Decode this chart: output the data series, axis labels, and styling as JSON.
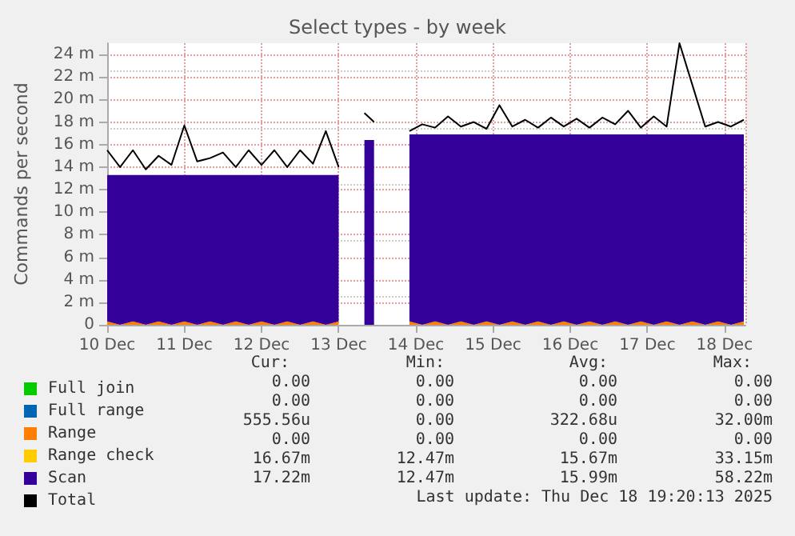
{
  "chart_data": {
    "type": "area",
    "title": "Select types - by week",
    "ylabel": "Commands per second",
    "stacked": true,
    "grid": true,
    "legend": "bottom left",
    "marker": "none",
    "line_style": "solid",
    "x": [
      "2025-12-10T00:00",
      "2025-12-10T04:00",
      "2025-12-10T08:00",
      "2025-12-10T12:00",
      "2025-12-10T16:00",
      "2025-12-10T20:00",
      "2025-12-11T00:00",
      "2025-12-11T04:00",
      "2025-12-11T08:00",
      "2025-12-11T12:00",
      "2025-12-11T16:00",
      "2025-12-11T20:00",
      "2025-12-12T00:00",
      "2025-12-12T04:00",
      "2025-12-12T08:00",
      "2025-12-12T12:00",
      "2025-12-12T16:00",
      "2025-12-12T20:00",
      "2025-12-13T00:00",
      "2025-12-13T01:00",
      "2025-12-13T08:00",
      "2025-12-13T11:00",
      "2025-12-13T12:00",
      "2025-12-13T22:00",
      "2025-12-14T02:00",
      "2025-12-14T06:00",
      "2025-12-14T10:00",
      "2025-12-14T14:00",
      "2025-12-14T18:00",
      "2025-12-14T22:00",
      "2025-12-15T02:00",
      "2025-12-15T06:00",
      "2025-12-15T10:00",
      "2025-12-15T14:00",
      "2025-12-15T18:00",
      "2025-12-15T22:00",
      "2025-12-16T02:00",
      "2025-12-16T06:00",
      "2025-12-16T10:00",
      "2025-12-16T14:00",
      "2025-12-16T18:00",
      "2025-12-16T22:00",
      "2025-12-17T02:00",
      "2025-12-17T06:00",
      "2025-12-17T10:00",
      "2025-12-17T14:00",
      "2025-12-17T18:00",
      "2025-12-17T22:00",
      "2025-12-18T02:00",
      "2025-12-18T06:00"
    ],
    "xlim": [
      "2025-12-10T00:00",
      "2025-12-18T06:30"
    ],
    "xticks": [
      {
        "value": "2025-12-10",
        "label": "10 Dec"
      },
      {
        "value": "2025-12-11",
        "label": "11 Dec"
      },
      {
        "value": "2025-12-12",
        "label": "12 Dec"
      },
      {
        "value": "2025-12-13",
        "label": "13 Dec"
      },
      {
        "value": "2025-12-14",
        "label": "14 Dec"
      },
      {
        "value": "2025-12-15",
        "label": "15 Dec"
      },
      {
        "value": "2025-12-16",
        "label": "16 Dec"
      },
      {
        "value": "2025-12-17",
        "label": "17 Dec"
      },
      {
        "value": "2025-12-18",
        "label": "18 Dec"
      }
    ],
    "ylim": [
      0,
      25
    ],
    "yticks": [
      {
        "value": 0,
        "label": "0"
      },
      {
        "value": 2,
        "label": "2 m"
      },
      {
        "value": 4,
        "label": "4 m"
      },
      {
        "value": 6,
        "label": "6 m"
      },
      {
        "value": 8,
        "label": "8 m"
      },
      {
        "value": 10,
        "label": "10 m"
      },
      {
        "value": 12,
        "label": "12 m"
      },
      {
        "value": 14,
        "label": "14 m"
      },
      {
        "value": 16,
        "label": "16 m"
      },
      {
        "value": 18,
        "label": "18 m"
      },
      {
        "value": 20,
        "label": "20 m"
      },
      {
        "value": 22,
        "label": "22 m"
      },
      {
        "value": 24,
        "label": "24 m"
      }
    ],
    "series": [
      {
        "name": "Full join",
        "color": "#00cc00",
        "values": [
          null,
          null,
          null,
          null,
          null,
          null,
          null,
          null,
          null,
          null,
          null,
          null,
          null,
          null,
          null,
          null,
          null,
          null,
          null,
          null,
          null,
          null,
          null,
          null,
          null,
          null,
          null,
          null,
          null,
          null,
          null,
          null,
          null,
          null,
          null,
          null,
          null,
          null,
          null,
          null,
          null,
          null,
          null,
          null,
          null,
          null,
          null,
          null,
          null,
          null
        ]
      },
      {
        "name": "Full range",
        "color": "#0066b3",
        "values": [
          null,
          null,
          null,
          null,
          null,
          null,
          null,
          null,
          null,
          null,
          null,
          null,
          null,
          null,
          null,
          null,
          null,
          null,
          null,
          null,
          null,
          null,
          null,
          null,
          null,
          null,
          null,
          null,
          null,
          null,
          null,
          null,
          null,
          null,
          null,
          null,
          null,
          null,
          null,
          null,
          null,
          null,
          null,
          null,
          null,
          null,
          null,
          null,
          null,
          null
        ]
      },
      {
        "name": "Range",
        "color": "#ff8000",
        "values": [
          0.3,
          0,
          0.3,
          0,
          0.3,
          0,
          0.3,
          0,
          0.3,
          0,
          0.3,
          0,
          0.3,
          0,
          0.3,
          0,
          0.3,
          0,
          0.3,
          null,
          null,
          null,
          null,
          0.3,
          0,
          0.3,
          0,
          0.3,
          0,
          0.3,
          0,
          0.3,
          0,
          0.3,
          0,
          0.3,
          0,
          0.3,
          0,
          0.3,
          0,
          0.3,
          0,
          0.3,
          0,
          0.3,
          0,
          0.3,
          0,
          0.3
        ]
      },
      {
        "name": "Range check",
        "color": "#ffcc00",
        "values": [
          null,
          null,
          null,
          null,
          null,
          null,
          null,
          null,
          null,
          null,
          null,
          null,
          null,
          null,
          null,
          null,
          null,
          null,
          null,
          null,
          null,
          null,
          null,
          null,
          null,
          null,
          null,
          null,
          null,
          null,
          null,
          null,
          null,
          null,
          null,
          null,
          null,
          null,
          null,
          null,
          null,
          null,
          null,
          null,
          null,
          null,
          null,
          null,
          null,
          null
        ]
      },
      {
        "name": "Scan",
        "color": "#330099",
        "values": [
          13.0,
          13.3,
          13.0,
          13.3,
          13.0,
          13.3,
          13.0,
          13.3,
          13.0,
          13.3,
          13.0,
          13.3,
          13.0,
          13.3,
          13.0,
          13.3,
          13.0,
          13.3,
          13.0,
          null,
          16.4,
          16.4,
          null,
          16.6,
          16.9,
          16.6,
          16.9,
          16.6,
          16.9,
          16.6,
          16.9,
          16.6,
          16.9,
          16.6,
          16.9,
          16.6,
          16.9,
          16.6,
          16.9,
          16.6,
          16.9,
          16.6,
          16.9,
          16.6,
          16.9,
          16.6,
          16.9,
          16.6,
          16.9,
          16.6
        ]
      },
      {
        "name": "Total",
        "color": "#000000",
        "type": "line",
        "values": [
          15.5,
          14.0,
          15.5,
          13.8,
          15.0,
          14.2,
          17.7,
          14.5,
          14.8,
          15.3,
          14.0,
          15.5,
          14.2,
          15.5,
          14.0,
          15.5,
          14.3,
          17.2,
          14.0,
          null,
          18.8,
          18.0,
          null,
          17.2,
          17.8,
          17.5,
          18.5,
          17.6,
          18.0,
          17.4,
          19.5,
          17.6,
          18.2,
          17.5,
          18.4,
          17.6,
          18.3,
          17.5,
          18.4,
          17.8,
          19.0,
          17.5,
          18.5,
          17.6,
          25.0,
          21.3,
          17.6,
          18.0,
          17.6,
          18.2
        ]
      }
    ],
    "annotations": [
      "Cur:",
      "Min:",
      "Avg:",
      "Max:",
      "0.00",
      "0.00",
      "0.00",
      "0.00",
      "0.00",
      "0.00",
      "0.00",
      "0.00",
      "555.56u",
      "0.00",
      "322.68u",
      "32.00m",
      "0.00",
      "0.00",
      "0.00",
      "0.00",
      "16.67m",
      "12.47m",
      "15.67m",
      "33.15m",
      "17.22m",
      "12.47m",
      "15.99m",
      "58.22m",
      "Last update: Thu Dec 18 19:20:13 2025"
    ]
  }
}
